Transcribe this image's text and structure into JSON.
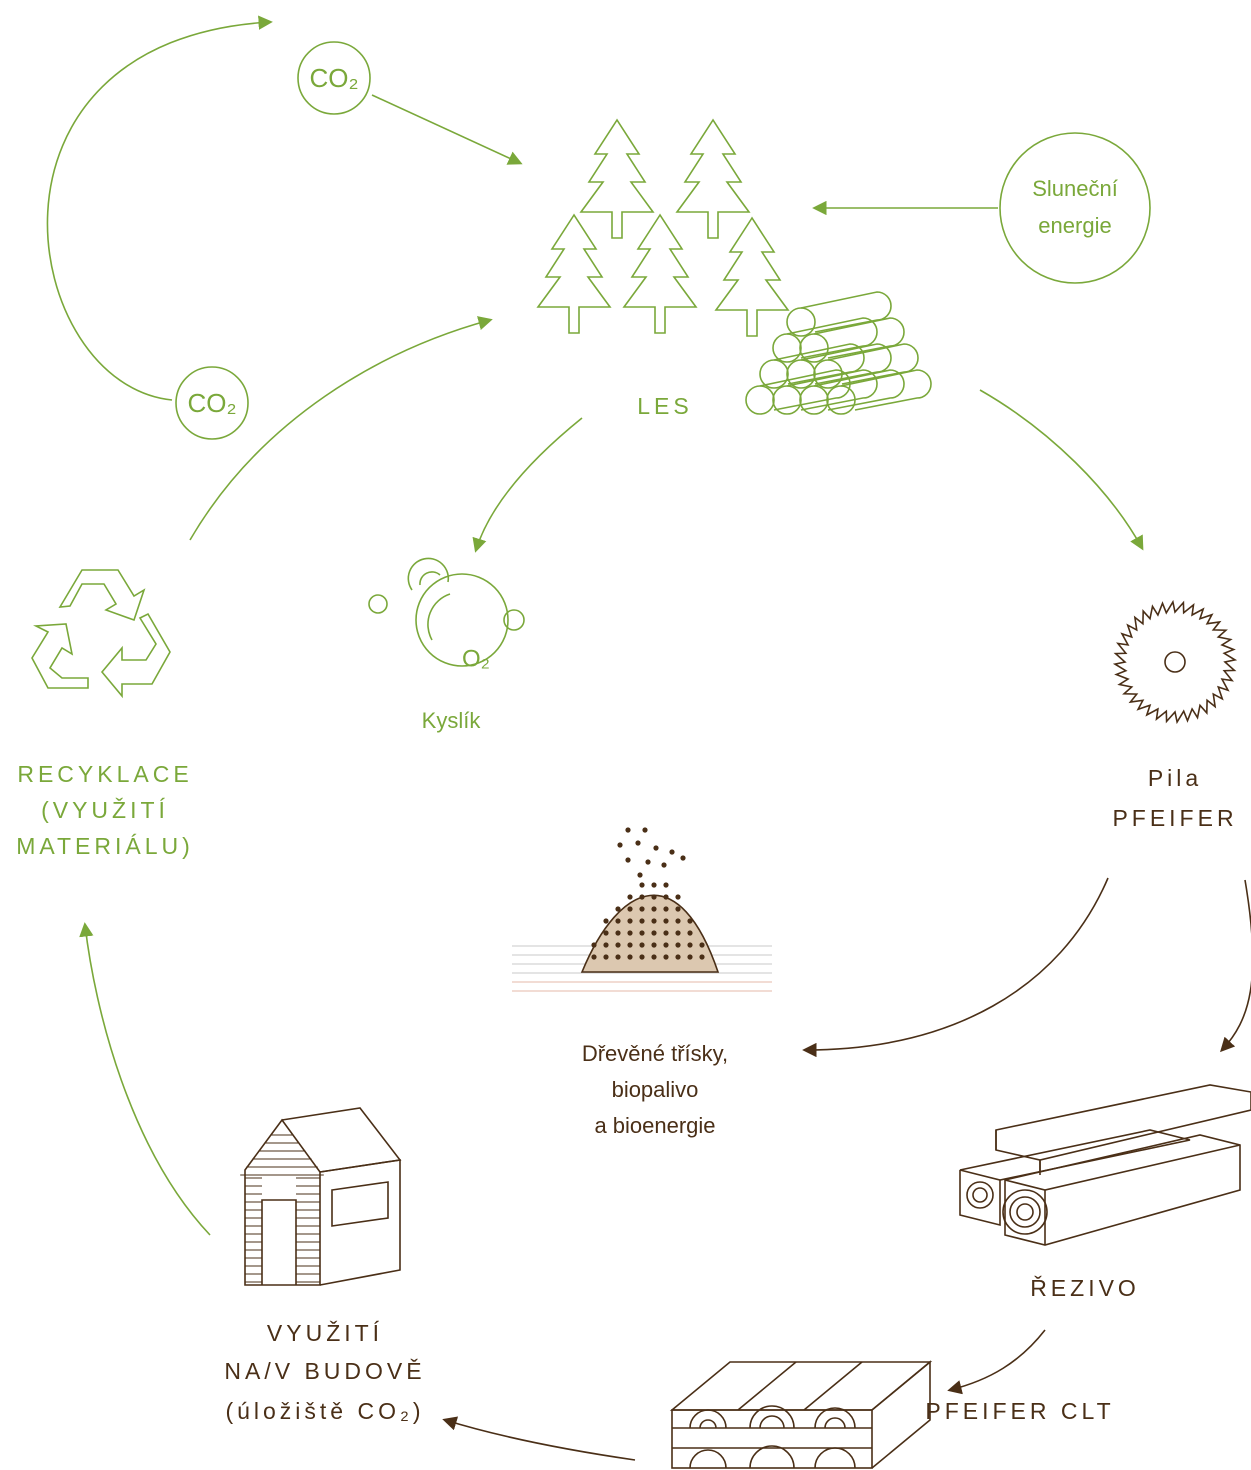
{
  "co2_top": "CO₂",
  "sun": [
    "Sluneční",
    "energie"
  ],
  "forest": "LES",
  "co2_left": "CO₂",
  "oxygen": "O₂",
  "oxygen_label": "Kyslík",
  "recycling": [
    "RECYKLACE",
    "(VYUŽITÍ",
    "MATERIÁLU)"
  ],
  "sawmill": [
    "Pila",
    "PFEIFER"
  ],
  "chips": [
    "Dřevěné třísky,",
    "biopalivo",
    "a bioenergie"
  ],
  "lumber": "ŘEZIVO",
  "building": [
    "VYUŽITÍ",
    "NA/V BUDOVĚ",
    "(úložiště CO₂)"
  ],
  "clt": "PFEIFER CLT"
}
